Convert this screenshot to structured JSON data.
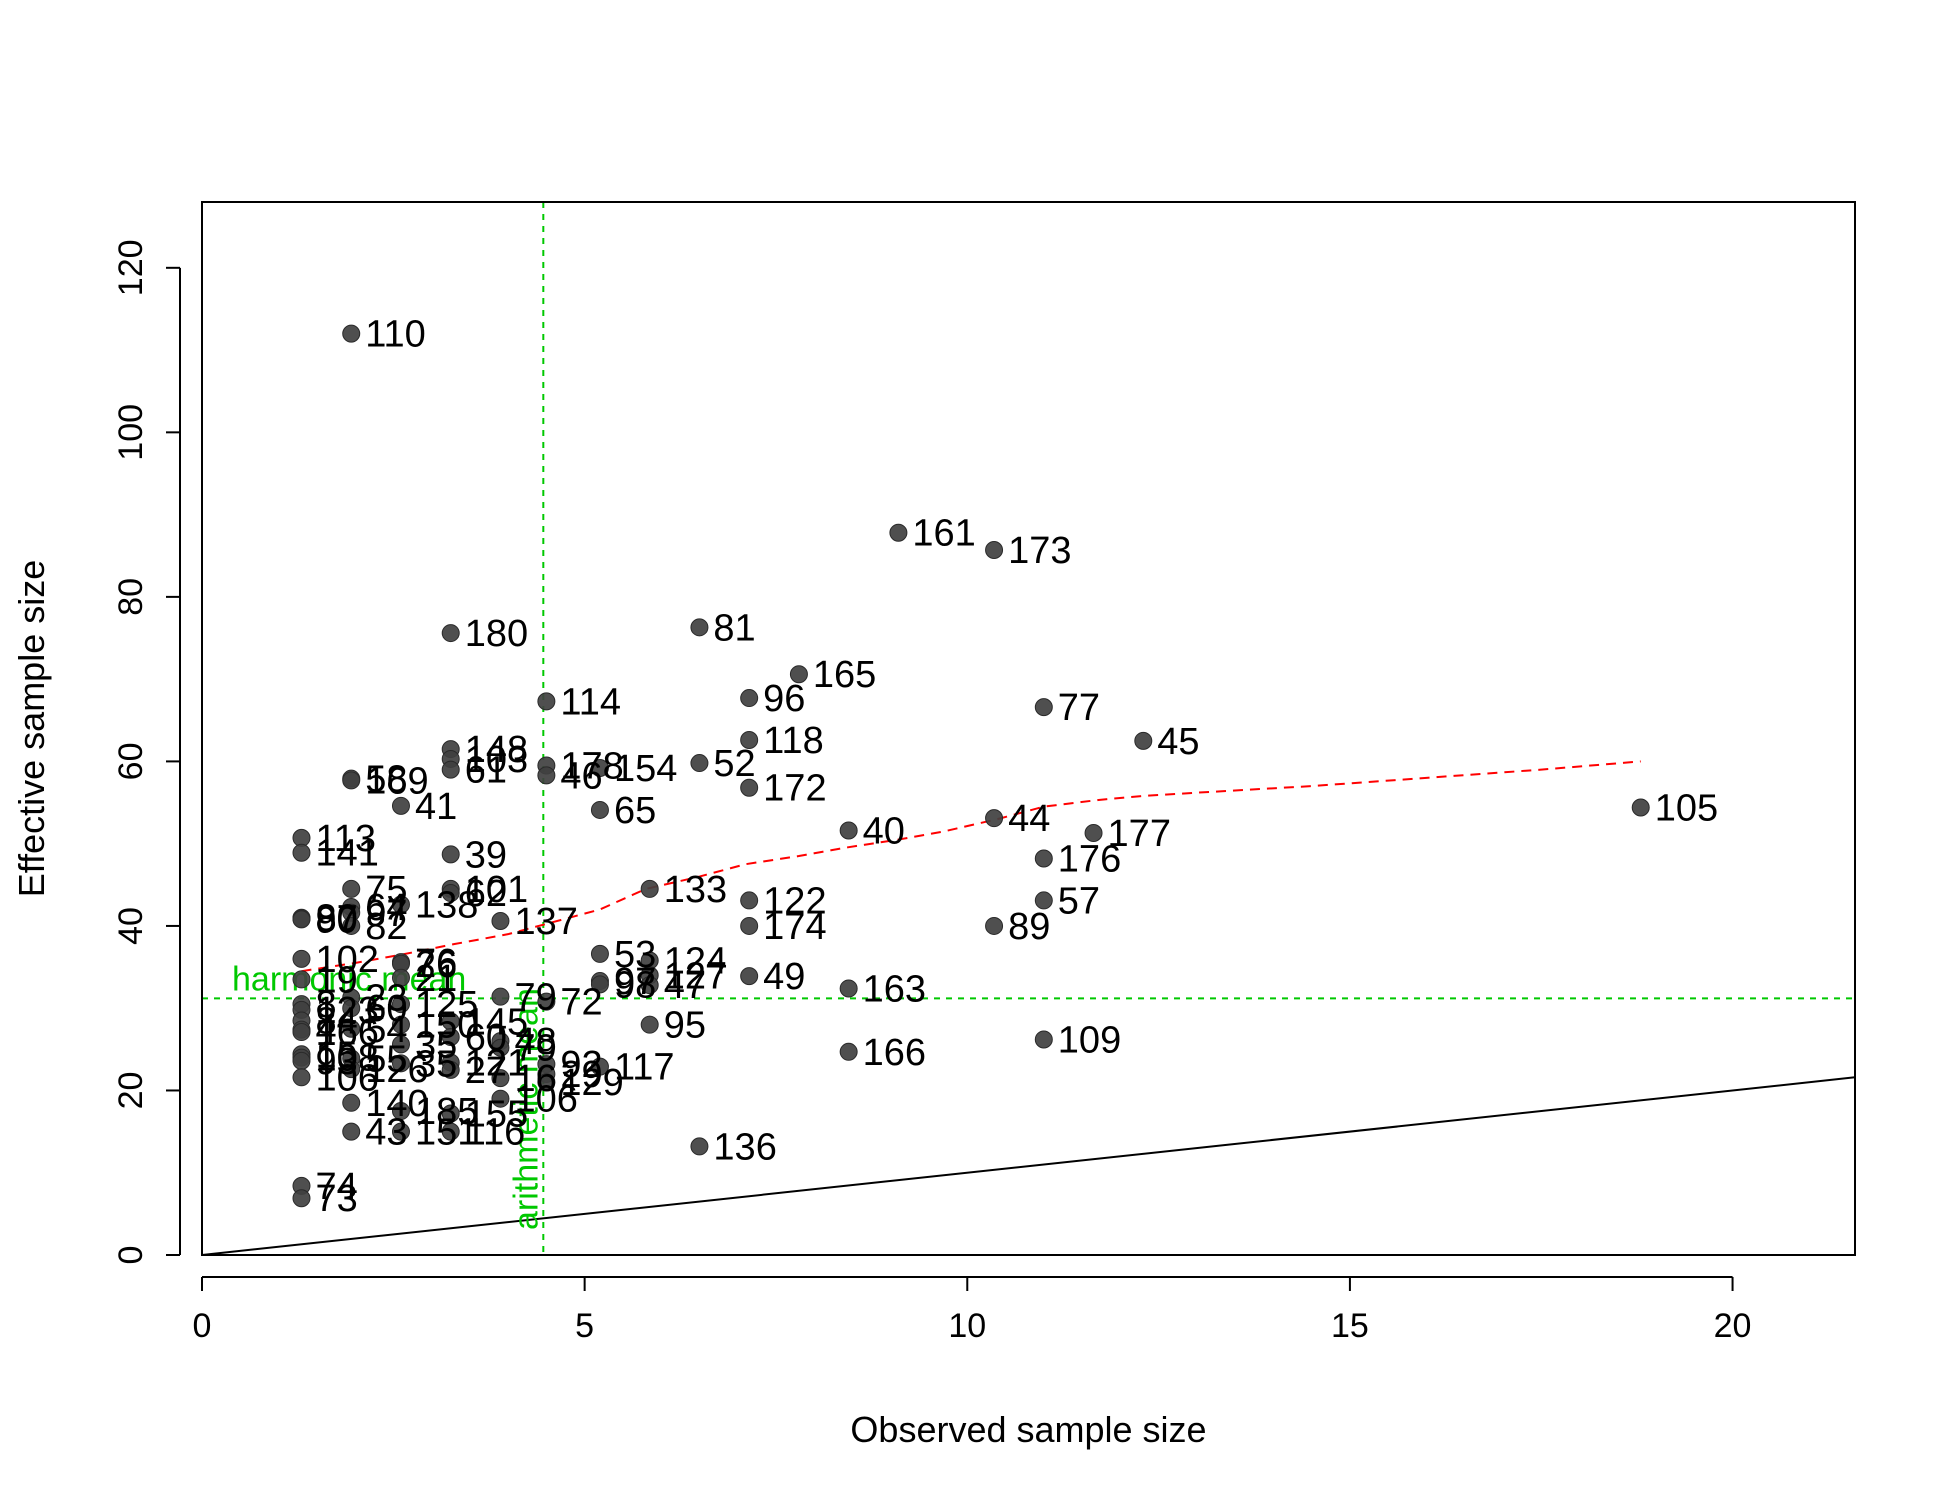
{
  "chart_data": {
    "type": "scatter",
    "title": "",
    "xlabel": "Observed sample size",
    "ylabel": "Effective sample size",
    "xlim": [
      0,
      21.6
    ],
    "ylim": [
      0,
      128
    ],
    "x_ticks": [
      0,
      5,
      10,
      15,
      20
    ],
    "y_ticks": [
      0,
      20,
      40,
      60,
      80,
      100,
      120
    ],
    "grid": false,
    "legend": "none",
    "colors": {
      "points": "#404040",
      "identity_line": "#000000",
      "trend_line": "#ff0000",
      "reference_lines": "#00c800"
    },
    "identity_line": {
      "from": [
        0,
        0
      ],
      "to": [
        21.6,
        21.6
      ]
    },
    "reference_lines": {
      "harmonic_mean": {
        "label": "harmonic mean",
        "y": 31.2
      },
      "arithmetic_mean": {
        "label": "arithmetic mean",
        "x": 4.46
      }
    },
    "trend_line": {
      "x": [
        1.3,
        2.0,
        2.6,
        3.3,
        4.0,
        4.6,
        5.2,
        5.8,
        6.5,
        7.1,
        7.8,
        8.4,
        9.1,
        9.7,
        10.4,
        11.0,
        11.7,
        12.3,
        13.0,
        14.5,
        16.0,
        17.5,
        18.8
      ],
      "y": [
        34.5,
        35.5,
        36.5,
        37.8,
        39.0,
        40.5,
        42.0,
        44.5,
        46.0,
        47.5,
        48.5,
        49.5,
        50.5,
        51.5,
        53.0,
        54.5,
        55.3,
        55.8,
        56.2,
        57.0,
        58.0,
        59.0,
        60.0
      ]
    },
    "points": [
      {
        "label": "110",
        "x": 1.95,
        "y": 112.0
      },
      {
        "label": "161",
        "x": 9.1,
        "y": 87.8
      },
      {
        "label": "173",
        "x": 10.35,
        "y": 85.7
      },
      {
        "label": "180",
        "x": 3.25,
        "y": 75.6
      },
      {
        "label": "81",
        "x": 6.5,
        "y": 76.3
      },
      {
        "label": "165",
        "x": 7.8,
        "y": 70.6
      },
      {
        "label": "96",
        "x": 7.15,
        "y": 67.7
      },
      {
        "label": "114",
        "x": 4.5,
        "y": 67.3
      },
      {
        "label": "77",
        "x": 11.0,
        "y": 66.6
      },
      {
        "label": "118",
        "x": 7.15,
        "y": 62.6
      },
      {
        "label": "45",
        "x": 12.3,
        "y": 62.5
      },
      {
        "label": "148",
        "x": 3.25,
        "y": 61.5
      },
      {
        "label": "103",
        "x": 3.25,
        "y": 60.3
      },
      {
        "label": "52",
        "x": 6.5,
        "y": 59.8
      },
      {
        "label": "178",
        "x": 4.5,
        "y": 59.5
      },
      {
        "label": "154",
        "x": 5.2,
        "y": 59.2
      },
      {
        "label": "61",
        "x": 3.25,
        "y": 59.0
      },
      {
        "label": "46",
        "x": 4.5,
        "y": 58.3
      },
      {
        "label": "58",
        "x": 1.95,
        "y": 57.9
      },
      {
        "label": "169",
        "x": 1.95,
        "y": 57.7
      },
      {
        "label": "172",
        "x": 7.15,
        "y": 56.8
      },
      {
        "label": "41",
        "x": 2.6,
        "y": 54.6
      },
      {
        "label": "105",
        "x": 18.8,
        "y": 54.4
      },
      {
        "label": "65",
        "x": 5.2,
        "y": 54.1
      },
      {
        "label": "44",
        "x": 10.35,
        "y": 53.1
      },
      {
        "label": "40",
        "x": 8.45,
        "y": 51.6
      },
      {
        "label": "177",
        "x": 11.65,
        "y": 51.3
      },
      {
        "label": "113",
        "x": 1.3,
        "y": 50.7
      },
      {
        "label": "141",
        "x": 1.3,
        "y": 48.9
      },
      {
        "label": "39",
        "x": 3.25,
        "y": 48.7
      },
      {
        "label": "176",
        "x": 11.0,
        "y": 48.2
      },
      {
        "label": "133",
        "x": 5.85,
        "y": 44.5
      },
      {
        "label": "75",
        "x": 1.95,
        "y": 44.5
      },
      {
        "label": "101",
        "x": 3.25,
        "y": 44.5
      },
      {
        "label": "62",
        "x": 3.25,
        "y": 44.0
      },
      {
        "label": "122",
        "x": 7.15,
        "y": 43.1
      },
      {
        "label": "57",
        "x": 11.0,
        "y": 43.1
      },
      {
        "label": "138",
        "x": 2.6,
        "y": 42.6
      },
      {
        "label": "64",
        "x": 1.95,
        "y": 42.3
      },
      {
        "label": "97",
        "x": 1.95,
        "y": 41.6
      },
      {
        "label": "80",
        "x": 1.3,
        "y": 41.0
      },
      {
        "label": "87",
        "x": 1.3,
        "y": 40.9
      },
      {
        "label": "90",
        "x": 1.3,
        "y": 40.8
      },
      {
        "label": "137",
        "x": 3.9,
        "y": 40.6
      },
      {
        "label": "82",
        "x": 1.95,
        "y": 40.0
      },
      {
        "label": "174",
        "x": 7.15,
        "y": 40.0
      },
      {
        "label": "89",
        "x": 10.35,
        "y": 40.0
      },
      {
        "label": "53",
        "x": 5.2,
        "y": 36.6
      },
      {
        "label": "102",
        "x": 1.3,
        "y": 36.0
      },
      {
        "label": "124",
        "x": 5.85,
        "y": 35.8
      },
      {
        "label": "76",
        "x": 2.6,
        "y": 35.6
      },
      {
        "label": "26",
        "x": 2.6,
        "y": 35.4
      },
      {
        "label": "127",
        "x": 5.85,
        "y": 34.0
      },
      {
        "label": "49",
        "x": 7.15,
        "y": 33.9
      },
      {
        "label": "21",
        "x": 2.6,
        "y": 33.7
      },
      {
        "label": "19",
        "x": 1.3,
        "y": 33.5
      },
      {
        "label": "97",
        "x": 5.2,
        "y": 33.3
      },
      {
        "label": "98",
        "x": 5.2,
        "y": 32.9
      },
      {
        "label": "47",
        "x": 5.85,
        "y": 32.8
      },
      {
        "label": "163",
        "x": 8.45,
        "y": 32.4
      },
      {
        "label": "79",
        "x": 3.9,
        "y": 31.4
      },
      {
        "label": "23",
        "x": 1.95,
        "y": 31.3
      },
      {
        "label": "72",
        "x": 4.5,
        "y": 30.8
      },
      {
        "label": "125",
        "x": 2.6,
        "y": 30.5
      },
      {
        "label": "8",
        "x": 1.3,
        "y": 30.5
      },
      {
        "label": "60",
        "x": 1.95,
        "y": 30.0
      },
      {
        "label": "123",
        "x": 1.3,
        "y": 29.8
      },
      {
        "label": "84",
        "x": 1.3,
        "y": 28.5
      },
      {
        "label": "145",
        "x": 3.25,
        "y": 28.4
      },
      {
        "label": "150",
        "x": 2.6,
        "y": 28.0
      },
      {
        "label": "95",
        "x": 5.85,
        "y": 28.0
      },
      {
        "label": "54",
        "x": 1.95,
        "y": 27.5
      },
      {
        "label": "4",
        "x": 1.3,
        "y": 27.4
      },
      {
        "label": "166",
        "x": 1.3,
        "y": 27.1
      },
      {
        "label": "60",
        "x": 3.25,
        "y": 26.5
      },
      {
        "label": "109",
        "x": 11.0,
        "y": 26.2
      },
      {
        "label": "48",
        "x": 3.9,
        "y": 26.0
      },
      {
        "label": "35",
        "x": 2.6,
        "y": 25.6
      },
      {
        "label": "79",
        "x": 3.9,
        "y": 25.2
      },
      {
        "label": "166",
        "x": 8.45,
        "y": 24.7
      },
      {
        "label": "15",
        "x": 1.3,
        "y": 24.4
      },
      {
        "label": "108",
        "x": 1.3,
        "y": 24.0
      },
      {
        "label": "55",
        "x": 1.95,
        "y": 23.9
      },
      {
        "label": "93",
        "x": 1.3,
        "y": 23.6
      },
      {
        "label": "121",
        "x": 3.25,
        "y": 23.4
      },
      {
        "label": "35",
        "x": 2.6,
        "y": 23.3
      },
      {
        "label": "92",
        "x": 4.5,
        "y": 23.2
      },
      {
        "label": "117",
        "x": 5.2,
        "y": 22.9
      },
      {
        "label": "126",
        "x": 1.95,
        "y": 22.6
      },
      {
        "label": "27",
        "x": 3.25,
        "y": 22.5
      },
      {
        "label": "29",
        "x": 4.5,
        "y": 22.0
      },
      {
        "label": "106",
        "x": 1.3,
        "y": 21.6
      },
      {
        "label": "16",
        "x": 3.9,
        "y": 21.5
      },
      {
        "label": "129",
        "x": 4.5,
        "y": 21.0
      },
      {
        "label": "106",
        "x": 3.9,
        "y": 19.0
      },
      {
        "label": "140",
        "x": 1.95,
        "y": 18.5
      },
      {
        "label": "185",
        "x": 2.6,
        "y": 17.5
      },
      {
        "label": "155",
        "x": 3.25,
        "y": 17.2
      },
      {
        "label": "136",
        "x": 6.5,
        "y": 13.2
      },
      {
        "label": "43",
        "x": 1.95,
        "y": 15.0
      },
      {
        "label": "151",
        "x": 2.6,
        "y": 15.0
      },
      {
        "label": "116",
        "x": 3.25,
        "y": 15.0
      },
      {
        "label": "74",
        "x": 1.3,
        "y": 8.4
      },
      {
        "label": "73",
        "x": 1.3,
        "y": 6.9
      }
    ]
  }
}
